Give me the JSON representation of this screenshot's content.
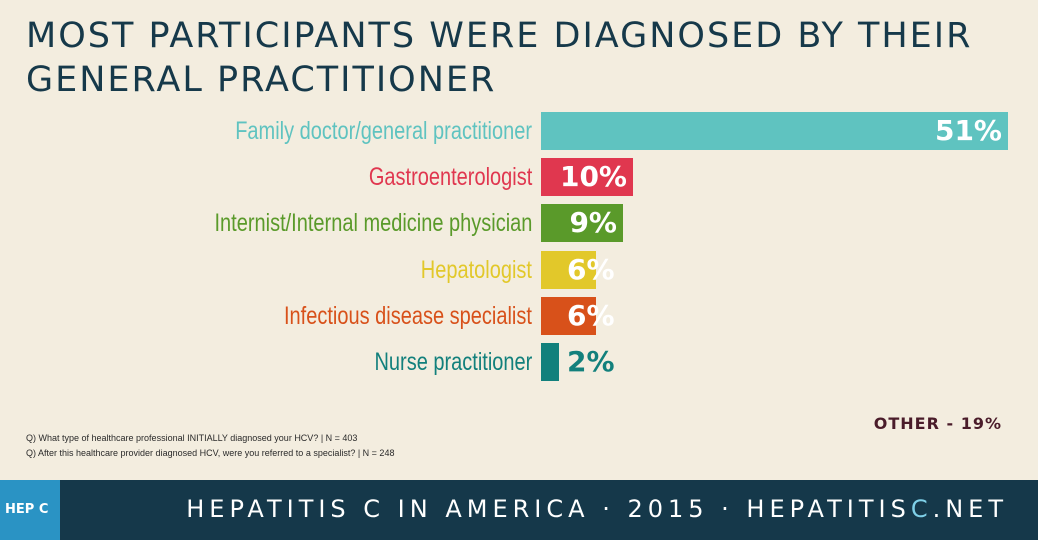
{
  "title": "MOST PARTICIPANTS WERE DIAGNOSED BY THEIR GENERAL PRACTITIONER",
  "chart_data": {
    "type": "bar",
    "orientation": "horizontal",
    "categories": [
      "Family doctor/general practitioner",
      "Gastroenterologist",
      "Internist/Internal medicine physician",
      "Hepatologist",
      "Infectious disease specialist",
      "Nurse practitioner"
    ],
    "values": [
      51,
      10,
      9,
      6,
      6,
      2
    ],
    "value_labels": [
      "51%",
      "10%",
      "9%",
      "6%",
      "6%",
      "2%"
    ],
    "colors": [
      "#5fc3c0",
      "#e0374f",
      "#5a9a2a",
      "#e2c82a",
      "#d8511a",
      "#12807c"
    ],
    "xlim": [
      0,
      51
    ],
    "grid": false,
    "legend": "none"
  },
  "other_label": "OTHER - 19%",
  "notes": [
    "Q) What type of healthcare professional INITIALLY diagnosed your HCV? | N = 403",
    "Q) After this healthcare provider diagnosed HCV, were you referred to a specialist? | N = 248"
  ],
  "footer": {
    "logo": "HEP C",
    "text_main": "HEPATITIS C IN AMERICA · 2015 · HEPATITIS",
    "text_accent": "C",
    "text_end": ".NET"
  }
}
